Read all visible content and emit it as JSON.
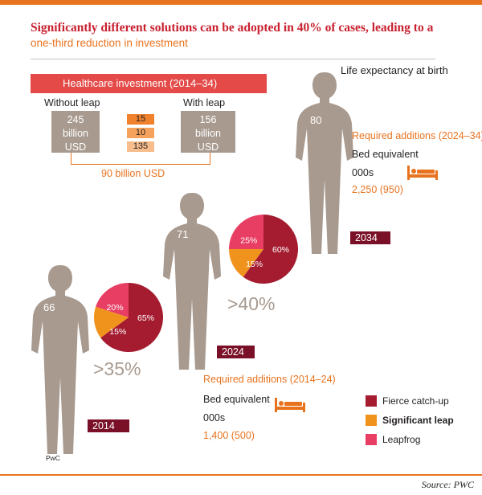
{
  "header": {
    "title": "Significantly different solutions can be adopted in 40% of cases, leading to a",
    "subtitle": "one-third reduction in investment",
    "life_expectancy_label": "Life expectancy at birth"
  },
  "investment": {
    "heading": "Healthcare investment (2014–34)",
    "without_label": "Without leap",
    "with_label": "With leap",
    "without_value": [
      "245",
      "billion",
      "USD"
    ],
    "with_value": [
      "156",
      "billion",
      "USD"
    ],
    "breakdown": [
      "15",
      "10",
      "135"
    ],
    "difference": "90 billion USD"
  },
  "colors": {
    "fierce": "#a51c30",
    "significant": "#f0931d",
    "leapfrog": "#e83e64",
    "figure": "#a89a8f",
    "year_box": "#7a1028",
    "accent": "#e8731f",
    "breakdown_fills": [
      "#f0822e",
      "#f4a25c",
      "#f7bd8c"
    ]
  },
  "chart_data": [
    {
      "type": "pie",
      "year": "2014",
      "life_expectancy": 66,
      "categories": [
        "Fierce catch-up",
        "Significant leap",
        "Leapfrog"
      ],
      "values": [
        65,
        15,
        20
      ],
      "labels": [
        "65%",
        "15%",
        "20%"
      ],
      "annotation": ">35%"
    },
    {
      "type": "pie",
      "year": "2024",
      "life_expectancy": 71,
      "categories": [
        "Fierce catch-up",
        "Significant leap",
        "Leapfrog"
      ],
      "values": [
        60,
        15,
        25
      ],
      "labels": [
        "60%",
        "15%",
        "25%"
      ],
      "annotation": ">40%"
    },
    {
      "type": "pie",
      "year": "2034",
      "life_expectancy": 80
    }
  ],
  "required_additions": [
    {
      "title": "Required additions (2024–34)",
      "metric": "Bed equivalent",
      "unit": "000s",
      "value": "2,250 (950)"
    },
    {
      "title": "Required additions (2014–24)",
      "metric": "Bed equivalent",
      "unit": "000s",
      "value": "1,400 (500)"
    }
  ],
  "legend": [
    {
      "label": "Fierce catch-up"
    },
    {
      "label": "Significant leap"
    },
    {
      "label": "Leapfrog"
    }
  ],
  "footer": {
    "pwc": "PwC",
    "source": "Source: PWC"
  },
  "icons": [
    "bed-icon"
  ]
}
